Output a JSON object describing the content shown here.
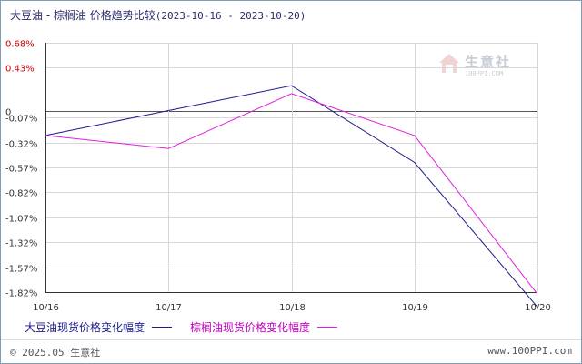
{
  "header": {
    "title": "大豆油 - 棕榈油 价格趋势比较",
    "date_range": "(2023-10-16 - 2023-10-20)"
  },
  "watermark": {
    "name": "生意社",
    "url": "100PPI.COM"
  },
  "footer": {
    "copyright": "© 2025.05 生意社",
    "url": "www.100PPI.com"
  },
  "colors": {
    "series1": "#1a1a8c",
    "series2": "#e020e0",
    "positive_tick": "#cc0000",
    "negative_tick": "#333333"
  },
  "chart_data": {
    "type": "line",
    "title": "大豆油 - 棕榈油 价格趋势比较",
    "x": [
      "10/16",
      "10/17",
      "10/18",
      "10/19",
      "10/20"
    ],
    "y_ticks": [
      "0.68%",
      "0.43%",
      "0",
      "-0.07%",
      "-0.32%",
      "-0.57%",
      "-0.82%",
      "-1.07%",
      "-1.32%",
      "-1.57%",
      "-1.82%"
    ],
    "ylim": [
      -1.82,
      0.68
    ],
    "grid": true,
    "legend_position": "bottom",
    "series": [
      {
        "name": "大豆油现货价格变化幅度",
        "values": [
          -0.25,
          0.0,
          0.25,
          -0.52,
          -1.97
        ]
      },
      {
        "name": "棕榈油现货价格变化幅度",
        "values": [
          -0.25,
          -0.38,
          0.17,
          -0.25,
          -1.84
        ]
      }
    ]
  }
}
